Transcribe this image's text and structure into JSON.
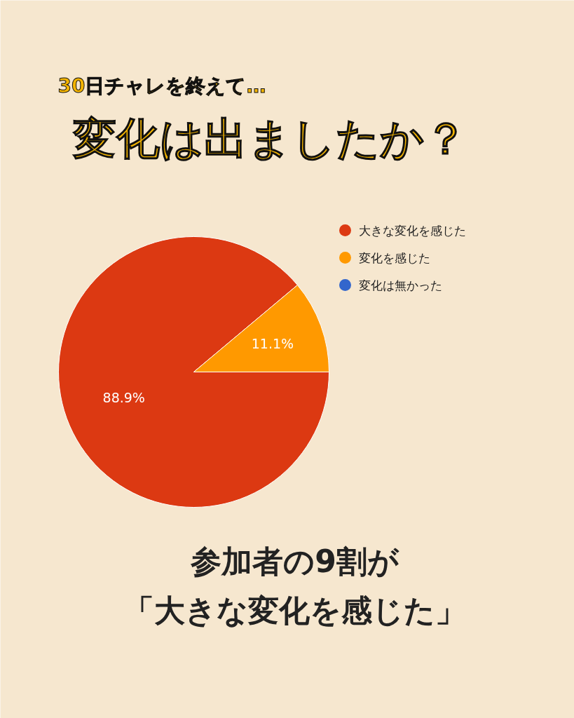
{
  "chart_data": {
    "type": "pie",
    "subtitle": "30日チャレを終えて…",
    "title": "変化は出ましたか？",
    "categories": [
      "大きな変化を感じた",
      "変化を感じた",
      "変化は無かった"
    ],
    "values": [
      88.9,
      11.1,
      0
    ],
    "colors": [
      "#dc3912",
      "#ff9900",
      "#3366cc"
    ],
    "value_labels": [
      "88.9%",
      "11.1%",
      null
    ],
    "legend": "top right",
    "annotations": [
      "参加者の9割が",
      "「大きな変化を感じた」"
    ]
  }
}
